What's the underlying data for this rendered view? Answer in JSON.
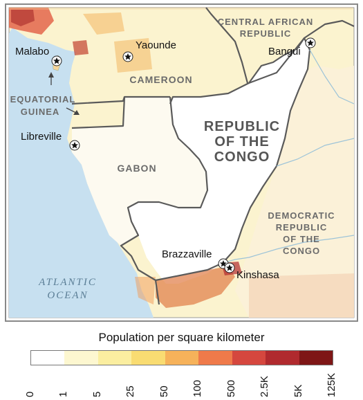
{
  "cities": {
    "malabo": "Malabo",
    "yaounde": "Yaounde",
    "bangui": "Bangui",
    "libreville": "Libreville",
    "brazzaville": "Brazzaville",
    "kinshasa": "Kinshasa"
  },
  "countries": {
    "car_line1": "CENTRAL AFRICAN",
    "car_line2": "REPUBLIC",
    "cameroon": "CAMEROON",
    "eq_guinea_line1": "EQUATORIAL",
    "eq_guinea_line2": "GUINEA",
    "congo_line1": "REPUBLIC",
    "congo_line2": "OF THE",
    "congo_line3": "CONGO",
    "gabon": "GABON",
    "drc_line1": "DEMOCRATIC",
    "drc_line2": "REPUBLIC",
    "drc_line3": "OF THE",
    "drc_line4": "CONGO"
  },
  "ocean": {
    "line1": "ATLANTIC",
    "line2": "OCEAN"
  },
  "legend": {
    "title": "Population per square kilometer",
    "ticks": [
      "0",
      "1",
      "5",
      "25",
      "50",
      "100",
      "500",
      "2.5K",
      "5K",
      "125K"
    ],
    "colors": [
      "#ffffff",
      "#fdf7d0",
      "#fbeea0",
      "#f9dc72",
      "#f6b25a",
      "#ef7a4a",
      "#d5473e",
      "#b02a2e",
      "#7e1616"
    ]
  },
  "colors": {
    "ocean": "#c7e0f0",
    "land_sparse": "#fbf3cf",
    "congo_fill": "#ffffff",
    "border": "#5a5a5a",
    "dense": "#e0533a"
  }
}
